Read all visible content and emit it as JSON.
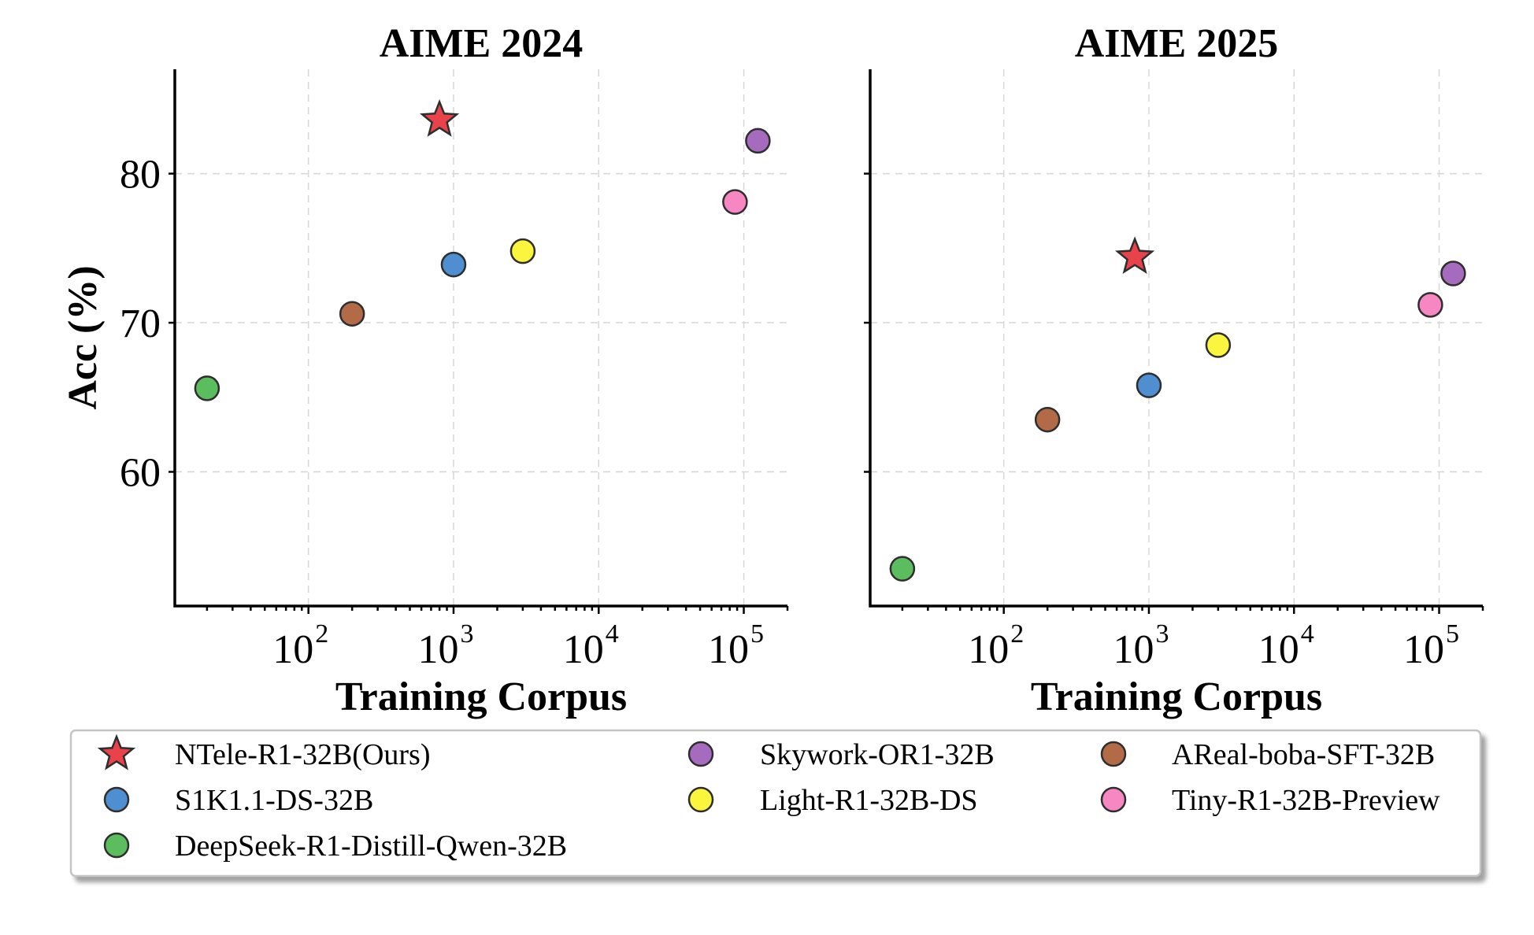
{
  "chart_data": [
    {
      "type": "scatter",
      "title": "AIME 2024",
      "xlabel": "Training Corpus",
      "ylabel": "Acc (%)",
      "xscale": "log",
      "xlim": [
        12,
        200000
      ],
      "ylim": [
        51,
        87
      ],
      "xticks": [
        {
          "base": "10",
          "exp": "2",
          "value": 100
        },
        {
          "base": "10",
          "exp": "3",
          "value": 1000
        },
        {
          "base": "10",
          "exp": "4",
          "value": 10000
        },
        {
          "base": "10",
          "exp": "5",
          "value": 100000
        }
      ],
      "yticks": [
        {
          "label": "60",
          "value": 60
        },
        {
          "label": "70",
          "value": 70
        },
        {
          "label": "80",
          "value": 80
        }
      ],
      "grid": true,
      "points": [
        {
          "model": "NTele-R1-32B(Ours)",
          "x": 800,
          "y": 83.6,
          "marker": "star"
        },
        {
          "model": "Skywork-OR1-32B",
          "x": 125000,
          "y": 82.2,
          "marker": "circle"
        },
        {
          "model": "AReal-boba-SFT-32B",
          "x": 200,
          "y": 70.6,
          "marker": "circle"
        },
        {
          "model": "S1K1.1-DS-32B",
          "x": 1000,
          "y": 73.9,
          "marker": "circle"
        },
        {
          "model": "Light-R1-32B-DS",
          "x": 3000,
          "y": 74.8,
          "marker": "circle"
        },
        {
          "model": "Tiny-R1-32B-Preview",
          "x": 87000,
          "y": 78.1,
          "marker": "circle"
        },
        {
          "model": "DeepSeek-R1-Distill-Qwen-32B",
          "x": 20,
          "y": 65.6,
          "marker": "circle"
        }
      ]
    },
    {
      "type": "scatter",
      "title": "AIME 2025",
      "xlabel": "Training Corpus",
      "ylabel": "",
      "xscale": "log",
      "xlim": [
        12,
        200000
      ],
      "ylim": [
        51,
        87
      ],
      "xticks": [
        {
          "base": "10",
          "exp": "2",
          "value": 100
        },
        {
          "base": "10",
          "exp": "3",
          "value": 1000
        },
        {
          "base": "10",
          "exp": "4",
          "value": 10000
        },
        {
          "base": "10",
          "exp": "5",
          "value": 100000
        }
      ],
      "yticks": [
        {
          "label": "",
          "value": 60
        },
        {
          "label": "",
          "value": 70
        },
        {
          "label": "",
          "value": 80
        }
      ],
      "grid": true,
      "points": [
        {
          "model": "NTele-R1-32B(Ours)",
          "x": 800,
          "y": 74.4,
          "marker": "star"
        },
        {
          "model": "Skywork-OR1-32B",
          "x": 125000,
          "y": 73.3,
          "marker": "circle"
        },
        {
          "model": "AReal-boba-SFT-32B",
          "x": 200,
          "y": 63.5,
          "marker": "circle"
        },
        {
          "model": "S1K1.1-DS-32B",
          "x": 1000,
          "y": 65.8,
          "marker": "circle"
        },
        {
          "model": "Light-R1-32B-DS",
          "x": 3000,
          "y": 68.5,
          "marker": "circle"
        },
        {
          "model": "Tiny-R1-32B-Preview",
          "x": 87000,
          "y": 71.2,
          "marker": "circle"
        },
        {
          "model": "DeepSeek-R1-Distill-Qwen-32B",
          "x": 20,
          "y": 53.5,
          "marker": "circle"
        }
      ]
    }
  ],
  "legend": {
    "placement": "bottom",
    "entries": [
      {
        "label": "NTele-R1-32B(Ours)",
        "marker": "star",
        "color": "#e8424a"
      },
      {
        "label": "S1K1.1-DS-32B",
        "marker": "circle",
        "color": "#4f8ed0"
      },
      {
        "label": "DeepSeek-R1-Distill-Qwen-32B",
        "marker": "circle",
        "color": "#5cbd5e"
      },
      {
        "label": "Skywork-OR1-32B",
        "marker": "circle",
        "color": "#a66bbf"
      },
      {
        "label": "Light-R1-32B-DS",
        "marker": "circle",
        "color": "#fbf53e"
      },
      {
        "label": "AReal-boba-SFT-32B",
        "marker": "circle",
        "color": "#b36b47"
      },
      {
        "label": "Tiny-R1-32B-Preview",
        "marker": "circle",
        "color": "#f787c2"
      }
    ]
  }
}
